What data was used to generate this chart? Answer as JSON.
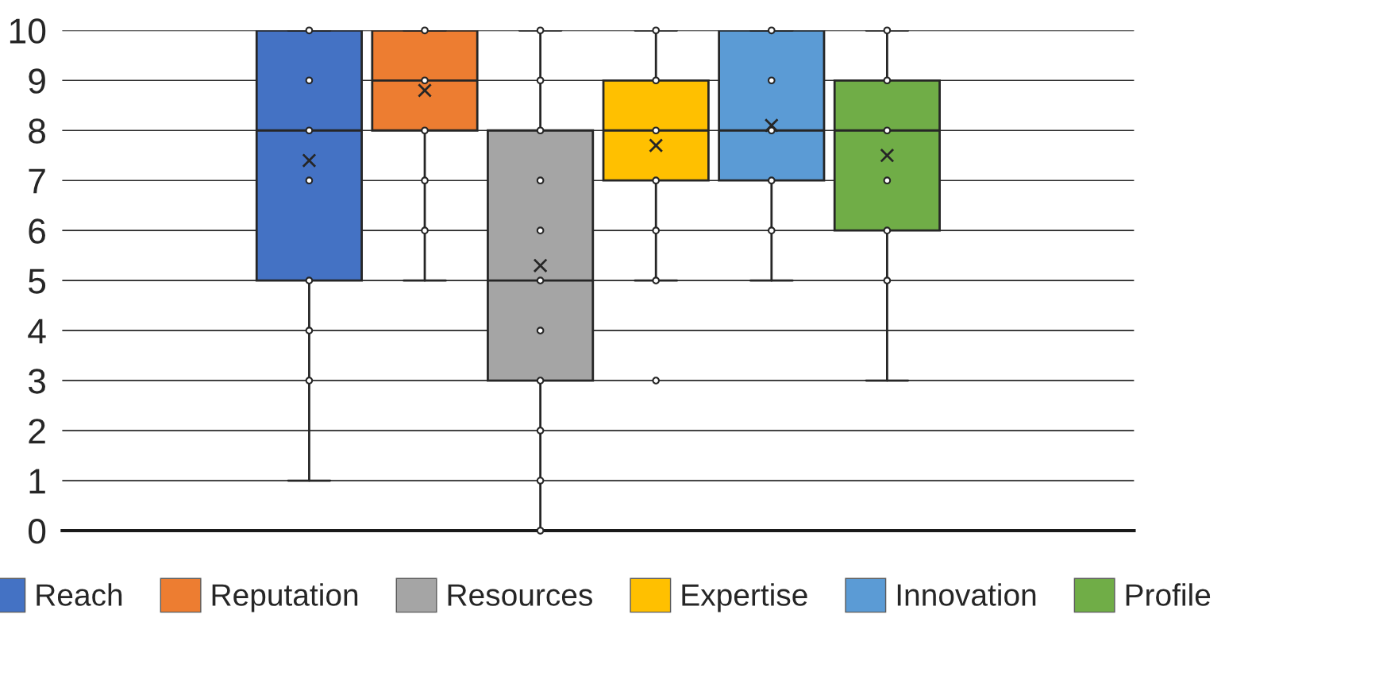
{
  "chart_data": {
    "type": "box",
    "categories": [
      null
    ],
    "ylim": [
      0,
      10
    ],
    "yticks": [
      0,
      1,
      2,
      3,
      4,
      5,
      6,
      7,
      8,
      9,
      10
    ],
    "grid": "y",
    "legend": "bottom",
    "tick_labels": "y",
    "marker": "circle",
    "series": [
      {
        "name": "Reach",
        "color": "#4472c4",
        "boxes": [
          {
            "low": 1,
            "q1": 5,
            "median": 8,
            "q3": 10,
            "high": 10,
            "mean": 7.4,
            "outliers": [
              10,
              9,
              8,
              7,
              5,
              4,
              3
            ]
          }
        ]
      },
      {
        "name": "Reputation",
        "color": "#ed7d31",
        "boxes": [
          {
            "low": 5,
            "q1": 8,
            "median": 9,
            "q3": 10,
            "high": 10,
            "mean": 8.8,
            "outliers": [
              10,
              9,
              8,
              7,
              6
            ]
          }
        ]
      },
      {
        "name": "Resources",
        "color": "#a5a5a5",
        "boxes": [
          {
            "low": 0,
            "q1": 3,
            "median": 5,
            "q3": 8,
            "high": 10,
            "mean": 5.3,
            "outliers": [
              10,
              9,
              8,
              7,
              6,
              5,
              4,
              3,
              2,
              1,
              0
            ]
          }
        ]
      },
      {
        "name": "Expertise",
        "color": "#ffc000",
        "boxes": [
          {
            "low": 5,
            "q1": 7,
            "median": 8,
            "q3": 9,
            "high": 10,
            "mean": 7.7,
            "outliers": [
              10,
              9,
              8,
              7,
              6,
              5,
              3
            ]
          }
        ]
      },
      {
        "name": "Innovation",
        "color": "#5b9bd5",
        "boxes": [
          {
            "low": 5,
            "q1": 7,
            "median": 8,
            "q3": 10,
            "high": 10,
            "mean": 8.1,
            "outliers": [
              10,
              9,
              8,
              7,
              6
            ]
          }
        ]
      },
      {
        "name": "Profile",
        "color": "#70ad47",
        "boxes": [
          {
            "low": 3,
            "q1": 6,
            "median": 8,
            "q3": 9,
            "high": 10,
            "mean": 7.5,
            "outliers": [
              10,
              9,
              8,
              7,
              6,
              5
            ]
          }
        ]
      }
    ]
  }
}
